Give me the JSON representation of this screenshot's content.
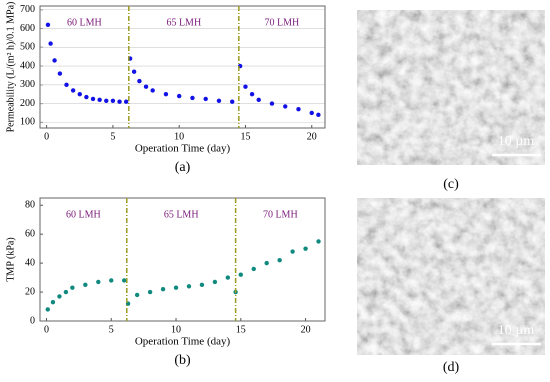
{
  "chart_data": [
    {
      "type": "scatter",
      "panel_label": "(a)",
      "x_label": "Operation Time (day)",
      "y_label": "Permeability (L/(m² h)/0.1 MPa)",
      "xlim": [
        -0.5,
        21
      ],
      "xticks": [
        0,
        5,
        10,
        15,
        20
      ],
      "ylim": [
        70,
        720
      ],
      "yticks": [
        100,
        200,
        300,
        400,
        500,
        600,
        700
      ],
      "grid": true,
      "phase_boundaries": [
        6.2,
        14.5
      ],
      "boundary_color": "#9a9a1e",
      "annotations": [
        "60 LMH",
        "65 LMH",
        "70 LMH"
      ],
      "annotation_color": "#7a1a7a",
      "series": [
        {
          "color": "#1212e6",
          "x": [
            0.1,
            0.3,
            0.6,
            1,
            1.5,
            2,
            2.5,
            3,
            3.5,
            4,
            4.5,
            5,
            5.5,
            6,
            6.3,
            6.6,
            7,
            7.5,
            8,
            9,
            10,
            11,
            12,
            13,
            14,
            14.6,
            15,
            15.5,
            16,
            17,
            18,
            19,
            20,
            20.5
          ],
          "values": [
            620,
            520,
            430,
            360,
            300,
            270,
            250,
            235,
            225,
            220,
            215,
            215,
            210,
            210,
            440,
            370,
            320,
            290,
            270,
            250,
            240,
            230,
            225,
            215,
            210,
            400,
            290,
            250,
            220,
            200,
            185,
            170,
            150,
            140
          ]
        }
      ]
    },
    {
      "type": "scatter",
      "panel_label": "(b)",
      "x_label": "Operation Time (day)",
      "y_label": "TMP (kPa)",
      "xlim": [
        -0.5,
        21.5
      ],
      "xticks": [
        0,
        5,
        10,
        15,
        20
      ],
      "ylim": [
        0,
        85
      ],
      "yticks": [
        0,
        20,
        40,
        60,
        80
      ],
      "grid": false,
      "phase_boundaries": [
        6.2,
        14.6
      ],
      "boundary_color": "#9a9a1e",
      "annotations": [
        "60 LMH",
        "65 LMH",
        "70 LMH"
      ],
      "annotation_color": "#7a1a7a",
      "series": [
        {
          "color": "#10897e",
          "x": [
            0.1,
            0.5,
            1,
            1.5,
            2,
            3,
            4,
            5,
            6,
            6.3,
            7,
            8,
            9,
            10,
            11,
            12,
            13,
            14,
            14.6,
            15,
            16,
            17,
            18,
            19,
            20,
            21
          ],
          "values": [
            8,
            13,
            17,
            20,
            23,
            25,
            27,
            28,
            28,
            12,
            18,
            20,
            22,
            23,
            24,
            25,
            27,
            30,
            20,
            32,
            36,
            40,
            42,
            48,
            50,
            55
          ]
        }
      ]
    }
  ],
  "images": [
    {
      "panel_label": "(c)",
      "scale_bar": "10 µm"
    },
    {
      "panel_label": "(d)",
      "scale_bar": "10 µm"
    }
  ]
}
